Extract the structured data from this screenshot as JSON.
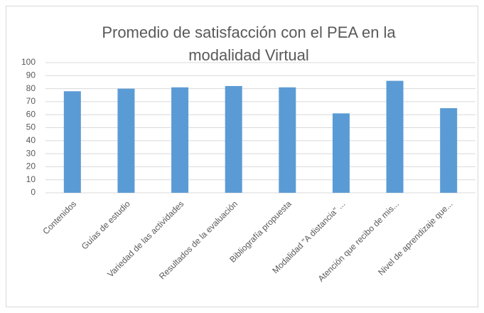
{
  "chart_data": {
    "type": "bar",
    "title": "Promedio de satisfacción con el PEA en la modalidad Virtual",
    "categories": [
      "Contenidos",
      "Guías de estudio",
      "Variedad de las actividades",
      "Resultados de la evaluación",
      "Bibliografía propuesta",
      "Modalidad \"A distancia\" ...",
      "Atención que recibo de mis...",
      "Nivel de aprendizaje que..."
    ],
    "values": [
      78,
      80,
      81,
      82,
      81,
      61,
      86,
      65
    ],
    "color": "#5b9bd5",
    "ylim": [
      0,
      100
    ],
    "yticks": [
      0,
      10,
      20,
      30,
      40,
      50,
      60,
      70,
      80,
      90,
      100
    ],
    "grid": true
  }
}
